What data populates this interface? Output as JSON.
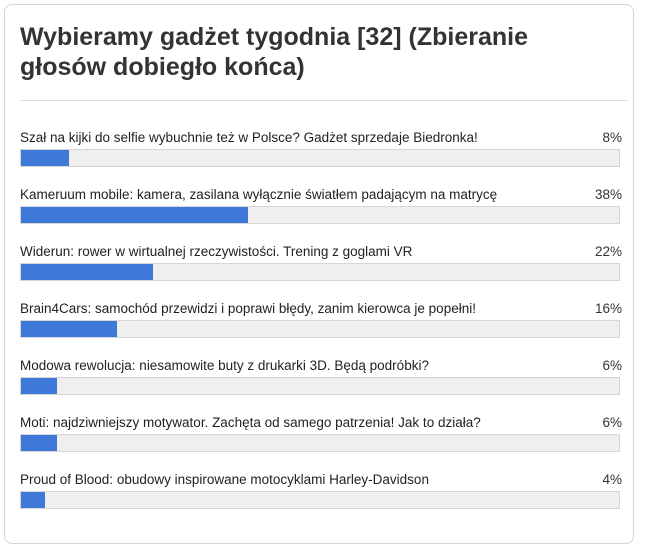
{
  "poll": {
    "title": "Wybieramy gadżet tygodnia [32] (Zbieranie głosów dobiegło końca)",
    "options": [
      {
        "label": "Szał na kijki do selfie wybuchnie też w Polsce? Gadżet sprzedaje Biedronka!",
        "percent_text": "8%",
        "percent": 8
      },
      {
        "label": "Kameruum mobile: kamera, zasilana wyłącznie światłem padającym na matrycę",
        "percent_text": "38%",
        "percent": 38
      },
      {
        "label": "Widerun: rower w wirtualnej rzeczywistości. Trening z goglami VR",
        "percent_text": "22%",
        "percent": 22
      },
      {
        "label": "Brain4Cars: samochód przewidzi i poprawi błędy, zanim kierowca je popełni!",
        "percent_text": "16%",
        "percent": 16
      },
      {
        "label": "Modowa rewolucja: niesamowite buty z drukarki 3D. Będą podróbki?",
        "percent_text": "6%",
        "percent": 6
      },
      {
        "label": "Moti: najdziwniejszy motywator. Zachęta od samego patrzenia! Jak to działa?",
        "percent_text": "6%",
        "percent": 6
      },
      {
        "label": "Proud of Blood: obudowy inspirowane motocyklami Harley-Davidson",
        "percent_text": "4%",
        "percent": 4
      }
    ]
  },
  "colors": {
    "bar_fill": "#3e78d8",
    "bar_track": "#efefef"
  }
}
